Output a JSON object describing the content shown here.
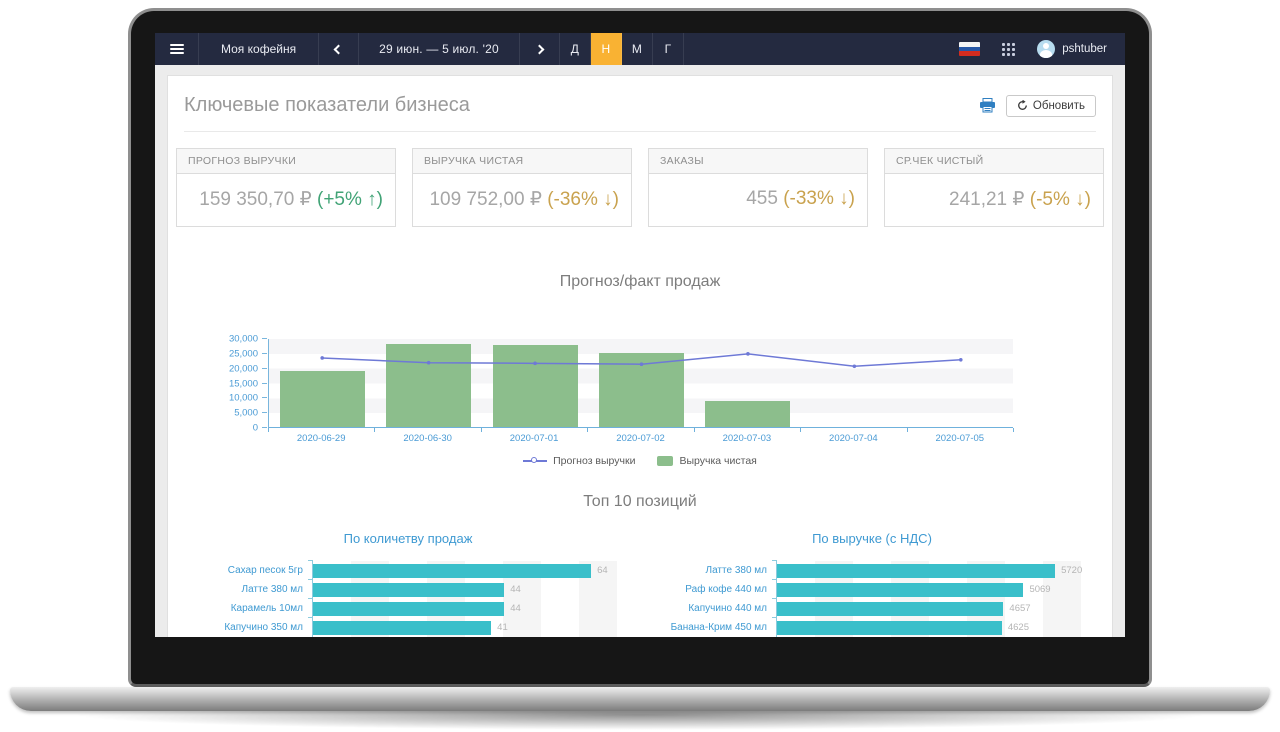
{
  "navbar": {
    "brand": "Моя кофейня",
    "date_range": "29 июн. — 5 июл. '20",
    "period_buttons": [
      {
        "label": "Д",
        "active": false
      },
      {
        "label": "Н",
        "active": true
      },
      {
        "label": "М",
        "active": false
      },
      {
        "label": "Г",
        "active": false
      }
    ],
    "username": "pshtuber",
    "icons": [
      "hamburger-menu-icon",
      "chevron-left-icon",
      "chevron-right-icon",
      "russia-flag-icon",
      "apps-grid-icon",
      "user-avatar-icon"
    ]
  },
  "page": {
    "title": "Ключевые показатели бизнеса",
    "refresh_label": "Обновить",
    "icons": [
      "printer-icon",
      "refresh-icon"
    ]
  },
  "kpis": [
    {
      "label": "ПРОГНОЗ ВЫРУЧКИ",
      "value": "159 350,70 ₽ ",
      "delta": "(+5% ↑)",
      "trend": "up"
    },
    {
      "label": "ВЫРУЧКА ЧИСТАЯ",
      "value": "109 752,00 ₽ ",
      "delta": "(-36% ↓)",
      "trend": "down"
    },
    {
      "label": "ЗАКАЗЫ",
      "value": "455 ",
      "delta": "(-33% ↓)",
      "trend": "down"
    },
    {
      "label": "СР.ЧЕК ЧИСТЫЙ",
      "value": "241,21 ₽ ",
      "delta": "(-5% ↓)",
      "trend": "down"
    }
  ],
  "chart_data": [
    {
      "type": "bar",
      "title": "Прогноз/факт продаж",
      "categories": [
        "2020-06-29",
        "2020-06-30",
        "2020-07-01",
        "2020-07-02",
        "2020-07-03",
        "2020-07-04",
        "2020-07-05"
      ],
      "series": [
        {
          "name": "Прогноз выручки",
          "type": "line",
          "color": "#6e79d6",
          "values": [
            23600,
            22000,
            21800,
            21500,
            25000,
            20800,
            23000
          ]
        },
        {
          "name": "Выручка чистая",
          "type": "bar",
          "color": "#8cbe8c",
          "values": [
            19000,
            28000,
            27500,
            24800,
            8900,
            0,
            0
          ]
        }
      ],
      "ylim": [
        0,
        30000
      ],
      "yticks": [
        0,
        5000,
        10000,
        15000,
        20000,
        25000,
        30000
      ],
      "grid": "horizontal-bands",
      "legend_position": "bottom"
    },
    {
      "type": "bar",
      "orientation": "horizontal",
      "section_title": "Топ 10 позиций",
      "title": "По количетву продаж",
      "categories": [
        "Сахар песок 5гр",
        "Латте 380 мл",
        "Карамель 10мл",
        "Капучино 350 мл"
      ],
      "values": [
        64,
        44,
        44,
        41
      ],
      "bar_color": "#3abfca"
    },
    {
      "type": "bar",
      "orientation": "horizontal",
      "title": "По выручке (с НДС)",
      "categories": [
        "Латте 380 мл",
        "Раф кофе 440 мл",
        "Капучино 440 мл",
        "Банана-Крим 450 мл"
      ],
      "values": [
        5720,
        5069,
        4657,
        4625
      ],
      "bar_color": "#3abfca"
    }
  ],
  "colors": {
    "navbar_bg": "#242a40",
    "accent_active": "#f9b233",
    "kpi_up": "#41a376",
    "kpi_down": "#c9a24e",
    "axis_blue": "#4a9bd5",
    "bar_green": "#8cbe8c",
    "line_blue": "#6e79d6",
    "bar_teal": "#3abfca"
  }
}
